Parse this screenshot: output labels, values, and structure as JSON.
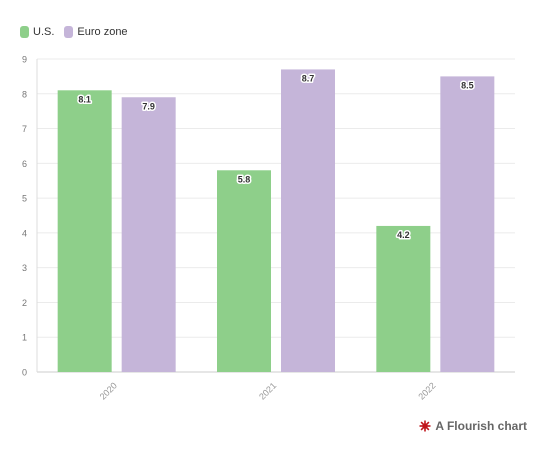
{
  "legend": {
    "items": [
      {
        "label": "U.S.",
        "color": "#8ecf8a"
      },
      {
        "label": "Euro zone",
        "color": "#c5b5d9"
      }
    ]
  },
  "footer": {
    "text": "A Flourish chart",
    "logo_icon": "flourish-star-icon",
    "logo_color": "#c0151b"
  },
  "chart_data": {
    "type": "bar",
    "categories": [
      "2020",
      "2021",
      "2022"
    ],
    "series": [
      {
        "name": "U.S.",
        "values": [
          8.1,
          5.8,
          4.2
        ],
        "color": "#8ecf8a"
      },
      {
        "name": "Euro zone",
        "values": [
          7.9,
          8.7,
          8.5
        ],
        "color": "#c5b5d9"
      }
    ],
    "ylim": [
      0,
      9
    ],
    "yticks": [
      0,
      1,
      2,
      3,
      4,
      5,
      6,
      7,
      8,
      9
    ],
    "grid": true,
    "legend_position": "top-left",
    "data_labels": true,
    "xlabel": "",
    "ylabel": ""
  }
}
